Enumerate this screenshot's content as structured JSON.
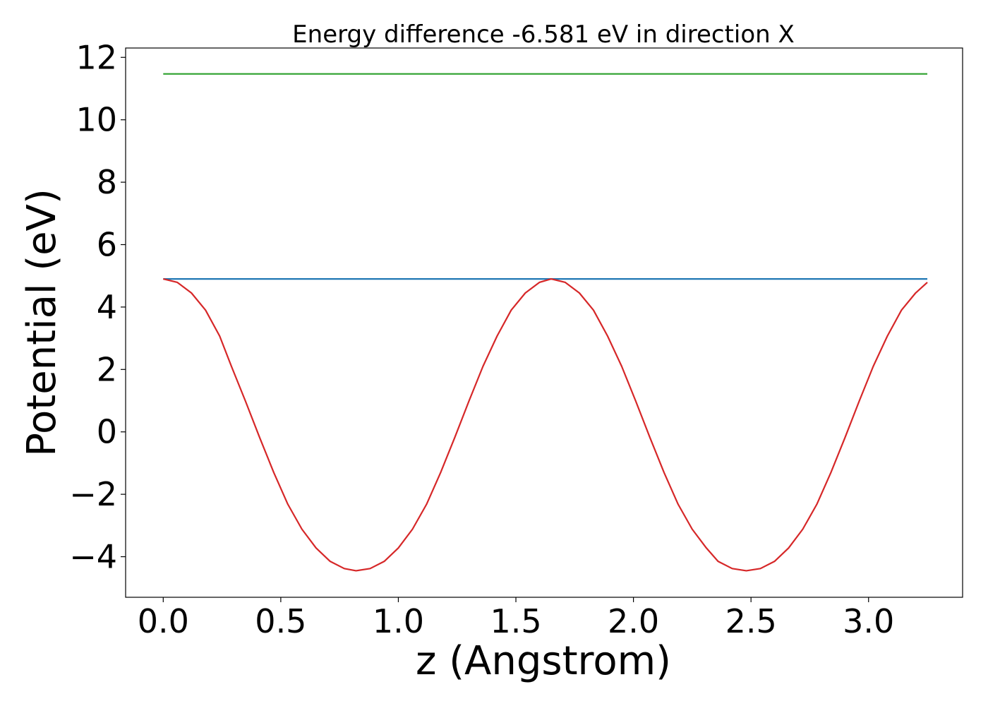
{
  "chart_data": {
    "type": "line",
    "title": "Energy difference -6.581 eV in direction X",
    "xlabel": "z (Angstrom)",
    "ylabel": "Potential (eV)",
    "xlim": [
      -0.16,
      3.4
    ],
    "ylim": [
      -5.3,
      12.3
    ],
    "xticks": [
      0.0,
      0.5,
      1.0,
      1.5,
      2.0,
      2.5,
      3.0
    ],
    "xtick_labels": [
      "0.0",
      "0.5",
      "1.0",
      "1.5",
      "2.0",
      "2.5",
      "3.0"
    ],
    "yticks": [
      -4,
      -2,
      0,
      2,
      4,
      6,
      8,
      10,
      12
    ],
    "ytick_labels": [
      "−4",
      "−2",
      "0",
      "2",
      "4",
      "6",
      "8",
      "10",
      "12"
    ],
    "grid": false,
    "series": [
      {
        "color": "#2ca02c",
        "x": [
          0.0,
          3.25
        ],
        "y": [
          11.47,
          11.47
        ]
      },
      {
        "color": "#1f77b4",
        "x": [
          0.0,
          3.25
        ],
        "y": [
          4.9,
          4.9
        ]
      },
      {
        "color": "#d62728",
        "x": [
          0.0,
          0.06,
          0.12,
          0.18,
          0.24,
          0.29,
          0.35,
          0.41,
          0.47,
          0.53,
          0.59,
          0.65,
          0.71,
          0.77,
          0.82,
          0.88,
          0.94,
          1.0,
          1.06,
          1.12,
          1.18,
          1.24,
          1.3,
          1.36,
          1.42,
          1.48,
          1.54,
          1.6,
          1.65,
          1.71,
          1.77,
          1.83,
          1.89,
          1.95,
          2.01,
          2.07,
          2.13,
          2.19,
          2.25,
          2.31,
          2.36,
          2.42,
          2.48,
          2.54,
          2.6,
          2.66,
          2.72,
          2.78,
          2.84,
          2.9,
          2.96,
          3.02,
          3.08,
          3.14,
          3.2,
          3.25
        ],
        "y": [
          4.9,
          4.79,
          4.45,
          3.9,
          3.07,
          2.1,
          0.98,
          -0.18,
          -1.3,
          -2.32,
          -3.12,
          -3.72,
          -4.15,
          -4.38,
          -4.45,
          -4.38,
          -4.15,
          -3.72,
          -3.12,
          -2.32,
          -1.3,
          -0.18,
          0.98,
          2.1,
          3.07,
          3.9,
          4.45,
          4.79,
          4.9,
          4.79,
          4.45,
          3.9,
          3.07,
          2.1,
          0.98,
          -0.18,
          -1.3,
          -2.32,
          -3.12,
          -3.72,
          -4.15,
          -4.38,
          -4.45,
          -4.38,
          -4.15,
          -3.72,
          -3.12,
          -2.32,
          -1.3,
          -0.18,
          0.98,
          2.1,
          3.07,
          3.9,
          4.45,
          4.79
        ]
      }
    ]
  }
}
